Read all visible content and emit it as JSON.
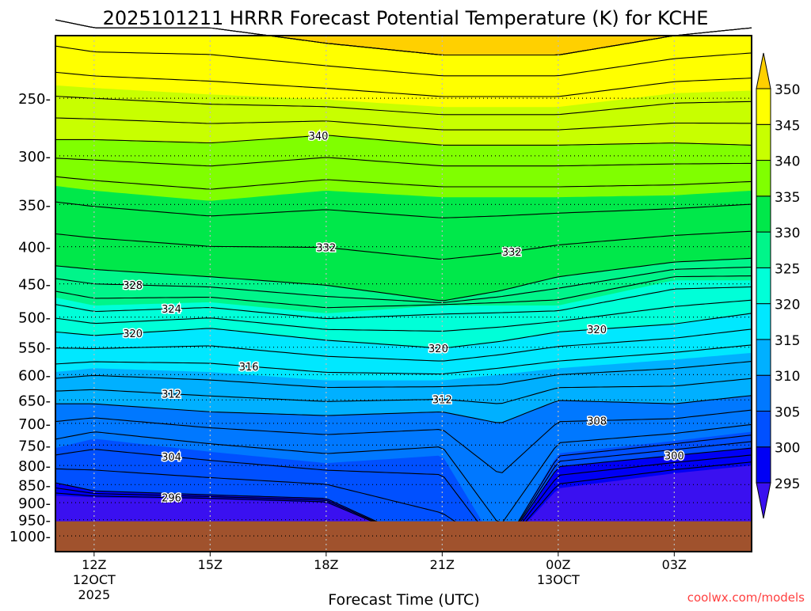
{
  "chart_data": {
    "type": "contour",
    "title": "2025101211 HRRR Forecast Potential Temperature (K) for KCHE",
    "xlabel": "Forecast Time (UTC)",
    "ylabel": "",
    "watermark": "coolwx.com/models",
    "x_range_hours": [
      -1,
      17
    ],
    "y_range_hPa": [
      205,
      1051
    ],
    "surface_pressure_hPa": 950,
    "x_ticks": [
      {
        "hour": 0,
        "label": "12Z",
        "sub": [
          "12OCT",
          "2025"
        ]
      },
      {
        "hour": 3,
        "label": "15Z",
        "sub": []
      },
      {
        "hour": 6,
        "label": "18Z",
        "sub": []
      },
      {
        "hour": 9,
        "label": "21Z",
        "sub": []
      },
      {
        "hour": 12,
        "label": "00Z",
        "sub": [
          "13OCT"
        ]
      },
      {
        "hour": 15,
        "label": "03Z",
        "sub": []
      }
    ],
    "y_ticks": [
      "250",
      "300",
      "350",
      "400",
      "450",
      "500",
      "550",
      "600",
      "650",
      "700",
      "750",
      "800",
      "850",
      "900",
      "950",
      "1000"
    ],
    "times_hours": [
      -1,
      0,
      3,
      6,
      9,
      10.5,
      12,
      15,
      17
    ],
    "isentrope_pressure_hPa": {
      "295": [
        880,
        885,
        890,
        900,
        1050,
        1050,
        860,
        820,
        800
      ],
      "300": [
        845,
        867,
        878,
        888,
        1050,
        1050,
        803,
        775,
        757
      ],
      "305": [
        757,
        735,
        766,
        794,
        775,
        1050,
        770,
        740,
        719
      ],
      "310": [
        658,
        658,
        675,
        683,
        675,
        700,
        651,
        658,
        641
      ],
      "315": [
        595,
        588,
        595,
        611,
        611,
        600,
        588,
        572,
        560
      ],
      "320": [
        524,
        530,
        518,
        538,
        552,
        540,
        524,
        511,
        494
      ],
      "325": [
        470,
        482,
        477,
        494,
        482,
        482,
        482,
        445,
        445
      ],
      "330": [
        425,
        430,
        440,
        452,
        475,
        460,
        440,
        420,
        415
      ],
      "335": [
        330,
        335,
        346,
        335,
        342,
        342,
        342,
        340,
        335
      ],
      "340": [
        285,
        285,
        288,
        281,
        290,
        290,
        290,
        288,
        290
      ],
      "345": [
        240,
        242,
        247,
        251,
        257,
        257,
        257,
        246,
        244
      ],
      "350": [
        195,
        200,
        200,
        210,
        218,
        218,
        218,
        205,
        200
      ]
    },
    "contour_interval_K": 2,
    "contour_labels": [
      {
        "theta": 340,
        "hour": 5.8,
        "text": "340"
      },
      {
        "theta": 332,
        "hour": 6,
        "text": "332"
      },
      {
        "theta": 332,
        "hour": 10.8,
        "text": "332"
      },
      {
        "theta": 328,
        "hour": 1,
        "text": "328"
      },
      {
        "theta": 324,
        "hour": 2,
        "text": "324"
      },
      {
        "theta": 320,
        "hour": 1,
        "text": "320"
      },
      {
        "theta": 320,
        "hour": 8.9,
        "text": "320"
      },
      {
        "theta": 320,
        "hour": 13,
        "text": "320"
      },
      {
        "theta": 316,
        "hour": 4,
        "text": "316"
      },
      {
        "theta": 312,
        "hour": 2,
        "text": "312"
      },
      {
        "theta": 312,
        "hour": 9,
        "text": "312"
      },
      {
        "theta": 308,
        "hour": 13,
        "text": "308"
      },
      {
        "theta": 304,
        "hour": 2,
        "text": "304"
      },
      {
        "theta": 300,
        "hour": 15,
        "text": "300"
      },
      {
        "theta": 296,
        "hour": 2,
        "text": "296"
      }
    ],
    "colorbar": {
      "levels": [
        "295",
        "300",
        "305",
        "310",
        "315",
        "320",
        "325",
        "330",
        "335",
        "340",
        "345",
        "350"
      ],
      "colors": [
        "#3a10f0",
        "#0000f5",
        "#0050ff",
        "#0078ff",
        "#00b0ff",
        "#00e8ff",
        "#00ffd8",
        "#00f58a",
        "#00e84a",
        "#80ff00",
        "#c8ff00",
        "#ffff00",
        "#ffd000"
      ]
    },
    "ground_color": "#a0522d"
  }
}
